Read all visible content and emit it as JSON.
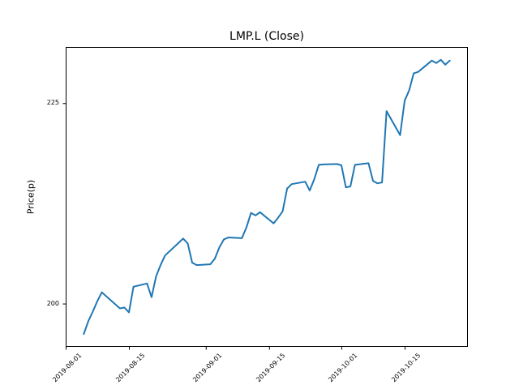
{
  "figure": {
    "background": "#ffffff",
    "spine_color": "#000000",
    "text_color": "#000000"
  },
  "chart_data": {
    "type": "line",
    "title": "LMP.L (Close)",
    "xlabel": "",
    "ylabel": "Price(p)",
    "grid": false,
    "legend": null,
    "line_color": "#1f77b4",
    "line_width": 2,
    "x_axis": {
      "start": "2019-08-01",
      "end": "2019-10-29",
      "tick_labels": [
        "2019-08-01",
        "2019-08-15",
        "2019-09-01",
        "2019-09-15",
        "2019-10-01",
        "2019-10-15"
      ]
    },
    "ylim": [
      194.6,
      232.0
    ],
    "yticks": [
      200,
      225
    ],
    "series": [
      {
        "name": "Close",
        "dates": [
          "2019-08-05",
          "2019-08-06",
          "2019-08-07",
          "2019-08-08",
          "2019-08-09",
          "2019-08-12",
          "2019-08-13",
          "2019-08-14",
          "2019-08-15",
          "2019-08-16",
          "2019-08-19",
          "2019-08-20",
          "2019-08-21",
          "2019-08-22",
          "2019-08-23",
          "2019-08-27",
          "2019-08-28",
          "2019-08-29",
          "2019-08-30",
          "2019-09-02",
          "2019-09-03",
          "2019-09-04",
          "2019-09-05",
          "2019-09-06",
          "2019-09-09",
          "2019-09-10",
          "2019-09-11",
          "2019-09-12",
          "2019-09-13",
          "2019-09-16",
          "2019-09-17",
          "2019-09-18",
          "2019-09-19",
          "2019-09-20",
          "2019-09-23",
          "2019-09-24",
          "2019-09-25",
          "2019-09-26",
          "2019-09-27",
          "2019-09-30",
          "2019-10-01",
          "2019-10-02",
          "2019-10-03",
          "2019-10-04",
          "2019-10-07",
          "2019-10-08",
          "2019-10-09",
          "2019-10-10",
          "2019-10-11",
          "2019-10-14",
          "2019-10-15",
          "2019-10-16",
          "2019-10-17",
          "2019-10-18",
          "2019-10-21",
          "2019-10-22",
          "2019-10-23",
          "2019-10-24",
          "2019-10-25"
        ],
        "values": [
          196.2,
          197.8,
          199.0,
          200.3,
          201.4,
          199.9,
          199.4,
          199.5,
          198.9,
          202.1,
          202.5,
          200.8,
          203.4,
          204.8,
          206.0,
          208.1,
          207.5,
          205.1,
          204.8,
          204.9,
          205.6,
          207.0,
          208.0,
          208.25,
          208.15,
          209.5,
          211.3,
          211.0,
          211.4,
          210.0,
          210.7,
          211.5,
          214.35,
          214.9,
          215.2,
          214.1,
          215.5,
          217.3,
          217.35,
          217.4,
          217.25,
          214.5,
          214.6,
          217.3,
          217.5,
          215.3,
          215.0,
          215.1,
          224.0,
          221.0,
          225.3,
          226.6,
          228.7,
          228.9,
          230.3,
          230.0,
          230.4,
          229.8,
          230.3
        ]
      }
    ]
  }
}
